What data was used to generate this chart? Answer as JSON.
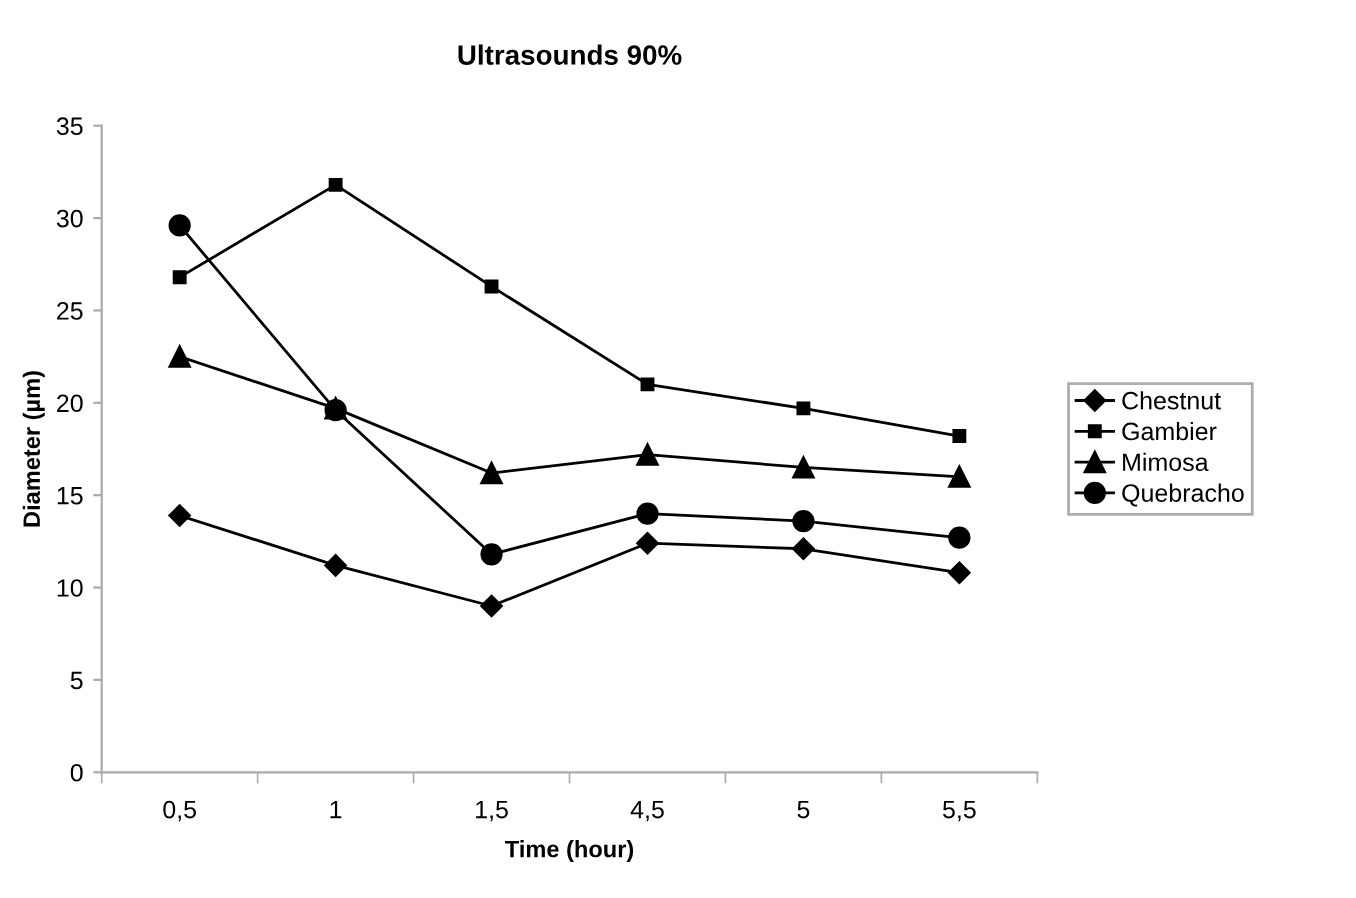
{
  "chart_data": {
    "type": "line",
    "title": "Ultrasounds 90%",
    "xlabel": "Time (hour)",
    "ylabel": "Diameter (µm)",
    "categories": [
      "0,5",
      "1",
      "1,5",
      "4,5",
      "5",
      "5,5"
    ],
    "ylim": [
      0,
      35
    ],
    "yticks": [
      0,
      5,
      10,
      15,
      20,
      25,
      30,
      35
    ],
    "grid": false,
    "legend": "right",
    "series": [
      {
        "name": "Chestnut",
        "color": "#000000",
        "marker": "diamond",
        "values": [
          13.9,
          11.2,
          9.0,
          12.4,
          12.1,
          10.8
        ]
      },
      {
        "name": "Gambier",
        "color": "#000000",
        "marker": "square",
        "values": [
          26.8,
          31.8,
          26.3,
          21.0,
          19.7,
          18.2
        ]
      },
      {
        "name": "Mimosa",
        "color": "#000000",
        "marker": "triangle",
        "values": [
          22.5,
          19.7,
          16.2,
          17.2,
          16.5,
          16.0
        ]
      },
      {
        "name": "Quebracho",
        "color": "#000000",
        "marker": "circle",
        "values": [
          29.6,
          19.6,
          11.8,
          14.0,
          13.6,
          12.7
        ]
      }
    ]
  }
}
